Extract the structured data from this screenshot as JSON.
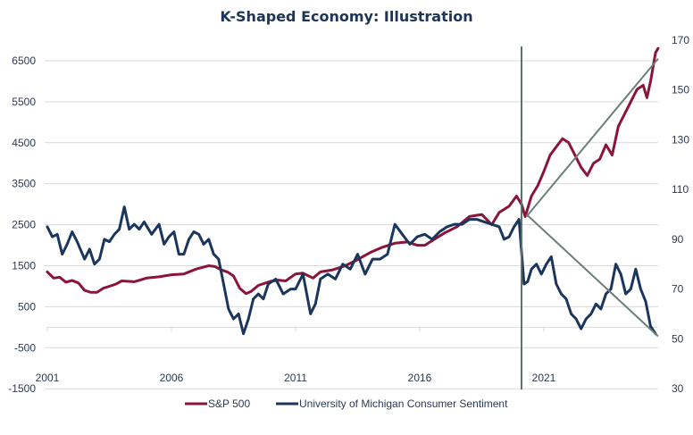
{
  "chart_data": {
    "type": "line",
    "title": "K-Shaped Economy: Illustration",
    "xlabel": "",
    "ylabel_left": "",
    "ylabel_right": "",
    "x_ticks": [
      "2001",
      "2006",
      "2011",
      "2016",
      "2021"
    ],
    "xlim": [
      2001,
      2025.6
    ],
    "ylim_left": [
      -1500,
      7000
    ],
    "ylim_right": [
      30,
      170
    ],
    "left_ticks": [
      "6500",
      "5500",
      "4500",
      "3500",
      "2500",
      "1500",
      "500",
      "-500",
      "-1500"
    ],
    "right_ticks": [
      "170",
      "150",
      "130",
      "110",
      "90",
      "70",
      "50",
      "30"
    ],
    "grid": true,
    "legend_position": "bottom",
    "colors": {
      "sp500": "#8b1538",
      "sentiment": "#1b365d",
      "trend": "#6b7f7a",
      "covid_line": "#5f6f6c",
      "grid": "#d9d9d9",
      "text": "#2b3a55",
      "title": "#1d3557"
    },
    "annotations": [
      {
        "type": "vertical-line",
        "x": 2020.1,
        "label": ""
      },
      {
        "type": "trend-line",
        "series": "sp500",
        "from": [
          2020.3,
          2700
        ],
        "to": [
          2025.6,
          6550
        ]
      },
      {
        "type": "trend-line",
        "series": "sentiment",
        "from": [
          2020.3,
          100
        ],
        "to": [
          2025.6,
          51
        ]
      }
    ],
    "series": [
      {
        "name": "S&P 500",
        "axis": "left",
        "x": [
          2001.0,
          2001.25,
          2001.5,
          2001.75,
          2002.0,
          2002.25,
          2002.5,
          2002.75,
          2003.0,
          2003.25,
          2003.5,
          2003.75,
          2004.0,
          2004.5,
          2005.0,
          2005.5,
          2006.0,
          2006.5,
          2007.0,
          2007.5,
          2007.75,
          2008.0,
          2008.25,
          2008.5,
          2008.75,
          2009.0,
          2009.2,
          2009.5,
          2010.0,
          2010.3,
          2010.6,
          2011.0,
          2011.3,
          2011.7,
          2012.0,
          2012.5,
          2013.0,
          2013.5,
          2014.0,
          2014.5,
          2015.0,
          2015.5,
          2015.9,
          2016.2,
          2016.6,
          2017.0,
          2017.5,
          2018.0,
          2018.5,
          2018.9,
          2019.2,
          2019.6,
          2019.9,
          2020.1,
          2020.25,
          2020.5,
          2020.75,
          2021.0,
          2021.25,
          2021.5,
          2021.75,
          2022.0,
          2022.25,
          2022.5,
          2022.75,
          2023.0,
          2023.25,
          2023.5,
          2023.75,
          2024.0,
          2024.25,
          2024.5,
          2024.75,
          2025.0,
          2025.15,
          2025.3,
          2025.5,
          2025.6
        ],
        "values": [
          1350,
          1200,
          1220,
          1100,
          1140,
          1080,
          900,
          850,
          850,
          950,
          1000,
          1050,
          1130,
          1110,
          1200,
          1230,
          1280,
          1300,
          1420,
          1500,
          1480,
          1400,
          1350,
          1250,
          950,
          820,
          870,
          1020,
          1120,
          1150,
          1130,
          1300,
          1320,
          1200,
          1350,
          1400,
          1500,
          1650,
          1820,
          1950,
          2050,
          2080,
          2000,
          2000,
          2150,
          2300,
          2450,
          2700,
          2750,
          2500,
          2800,
          2950,
          3200,
          3000,
          2700,
          3200,
          3450,
          3800,
          4200,
          4400,
          4600,
          4500,
          4200,
          3900,
          3700,
          4000,
          4100,
          4450,
          4200,
          4900,
          5200,
          5500,
          5800,
          5900,
          5600,
          6000,
          6700,
          6800
        ]
      },
      {
        "name": "University of Michigan Consumer Sentiment",
        "axis": "right",
        "x": [
          2001.0,
          2001.2,
          2001.4,
          2001.6,
          2001.8,
          2002.0,
          2002.2,
          2002.5,
          2002.7,
          2002.9,
          2003.1,
          2003.3,
          2003.5,
          2003.7,
          2003.9,
          2004.1,
          2004.3,
          2004.5,
          2004.7,
          2004.9,
          2005.2,
          2005.5,
          2005.7,
          2005.9,
          2006.1,
          2006.3,
          2006.5,
          2006.7,
          2006.9,
          2007.1,
          2007.3,
          2007.5,
          2007.7,
          2007.9,
          2008.1,
          2008.3,
          2008.5,
          2008.7,
          2008.9,
          2009.1,
          2009.3,
          2009.5,
          2009.7,
          2009.9,
          2010.2,
          2010.5,
          2010.8,
          2011.0,
          2011.3,
          2011.6,
          2011.8,
          2012.0,
          2012.3,
          2012.6,
          2012.9,
          2013.2,
          2013.5,
          2013.8,
          2014.1,
          2014.4,
          2014.7,
          2015.0,
          2015.3,
          2015.6,
          2015.9,
          2016.2,
          2016.5,
          2016.8,
          2017.1,
          2017.4,
          2017.7,
          2018.0,
          2018.3,
          2018.6,
          2018.9,
          2019.2,
          2019.4,
          2019.6,
          2019.8,
          2020.0,
          2020.2,
          2020.35,
          2020.5,
          2020.7,
          2020.9,
          2021.1,
          2021.3,
          2021.5,
          2021.7,
          2021.9,
          2022.1,
          2022.3,
          2022.5,
          2022.7,
          2022.9,
          2023.1,
          2023.3,
          2023.5,
          2023.7,
          2023.9,
          2024.1,
          2024.3,
          2024.5,
          2024.7,
          2024.9,
          2025.1,
          2025.3,
          2025.5
        ],
        "values": [
          95,
          91,
          92,
          84,
          88,
          93,
          89,
          82,
          86,
          80,
          82,
          90,
          89,
          92,
          94,
          103,
          94,
          96,
          94,
          97,
          92,
          96,
          88,
          91,
          93,
          84,
          84,
          90,
          93,
          92,
          88,
          90,
          84,
          82,
          72,
          62,
          58,
          60,
          52,
          58,
          66,
          68,
          66,
          72,
          74,
          68,
          70,
          70,
          76,
          60,
          64,
          74,
          76,
          74,
          80,
          78,
          84,
          76,
          82,
          82,
          84,
          96,
          92,
          88,
          91,
          92,
          90,
          93,
          95,
          96,
          96,
          98,
          98,
          97,
          96,
          95,
          90,
          91,
          95,
          98,
          72,
          73,
          78,
          80,
          76,
          80,
          83,
          72,
          68,
          66,
          60,
          58,
          54,
          58,
          60,
          64,
          62,
          68,
          70,
          80,
          76,
          68,
          70,
          78,
          70,
          65,
          55,
          52
        ]
      }
    ]
  },
  "legend": [
    {
      "label": "S&P 500",
      "color": "#8b1538"
    },
    {
      "label": "University of Michigan Consumer Sentiment",
      "color": "#1b365d"
    }
  ]
}
